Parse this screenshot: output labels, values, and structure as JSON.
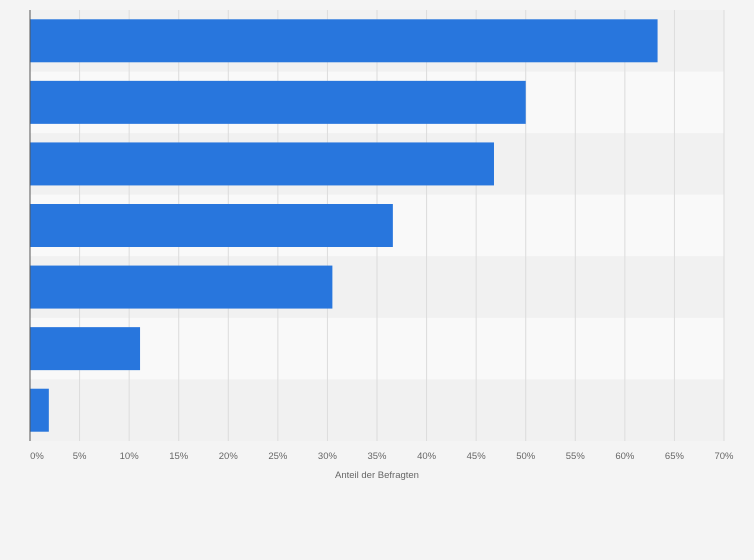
{
  "chart_data": {
    "type": "bar",
    "orientation": "horizontal",
    "categories": [
      "",
      "",
      "",
      "",
      "",
      "",
      ""
    ],
    "values": [
      63.3,
      50,
      46.8,
      36.6,
      30.5,
      11.1,
      1.9
    ],
    "xlabel": "Anteil der Befragten",
    "ylabel": "",
    "xlim": [
      0,
      70
    ],
    "ticks": [
      "0%",
      "5%",
      "10%",
      "15%",
      "20%",
      "25%",
      "30%",
      "35%",
      "40%",
      "45%",
      "50%",
      "55%",
      "60%",
      "65%",
      "70%"
    ],
    "grid": true,
    "legend": "none",
    "colors": {
      "bar": "#2876dd",
      "page_background": "#f4f4f4",
      "plot_band_dark": "#f1f1f1",
      "plot_band_light": "#f9f9f9",
      "grid_line": "#dcdcdc",
      "axis_line": "#555555",
      "tick_text": "#666666"
    }
  }
}
